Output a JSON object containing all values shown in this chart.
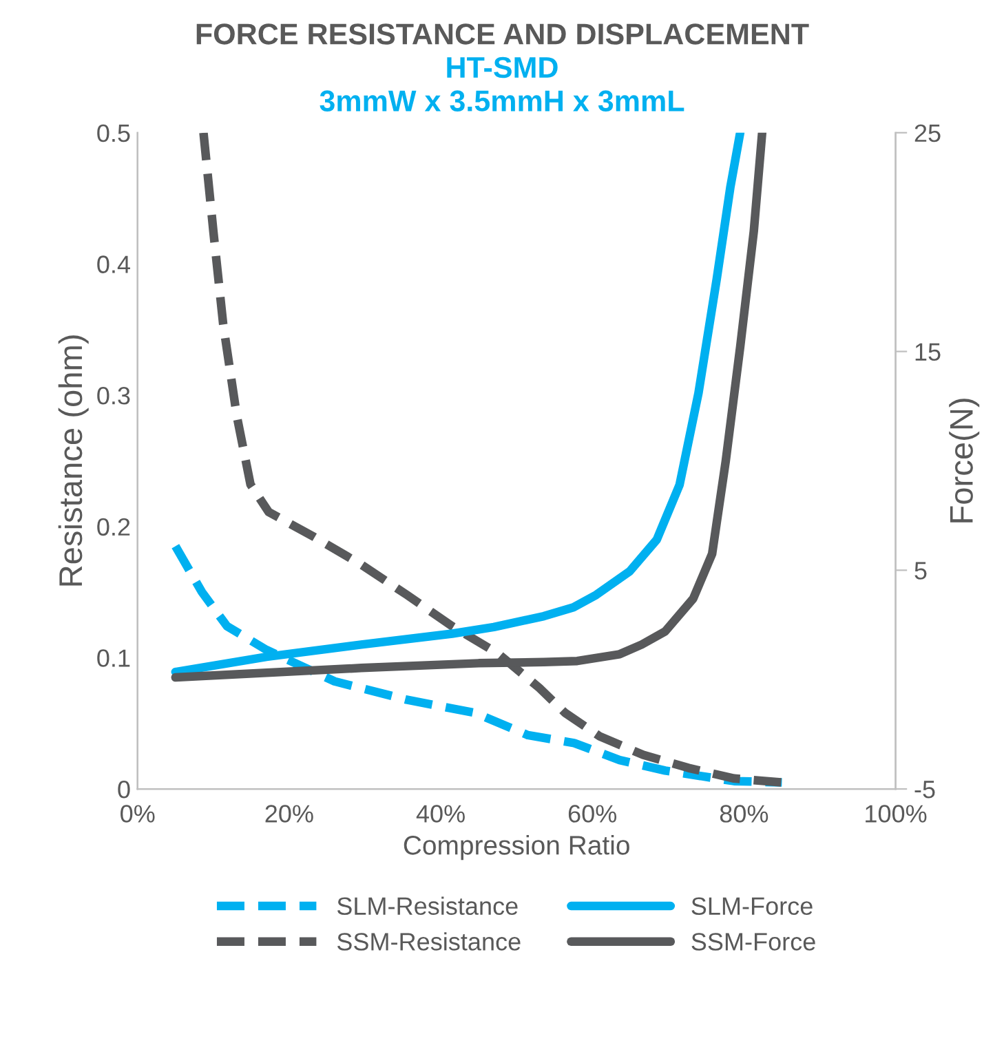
{
  "chart_data": {
    "type": "line",
    "title": "FORCE RESISTANCE AND DISPLACEMENT",
    "subtitle": "HT-SMD\n3mmW x 3.5mmH x 3mmL",
    "xlabel": "Compression Ratio",
    "ylabel": "Resistance (ohm)",
    "y2label": "Force(N)",
    "xlim": [
      0,
      100
    ],
    "xticks": [
      {
        "value": 0,
        "label": "0%"
      },
      {
        "value": 20,
        "label": "20%"
      },
      {
        "value": 40,
        "label": "40%"
      },
      {
        "value": 60,
        "label": "60%"
      },
      {
        "value": 80,
        "label": "80%"
      },
      {
        "value": 100,
        "label": "100%"
      }
    ],
    "ylim": [
      0,
      0.5
    ],
    "yticks": [
      0,
      0.1,
      0.2,
      0.3,
      0.4,
      0.5
    ],
    "y2lim": [
      -5,
      25
    ],
    "y2ticks": [
      -5,
      5,
      15,
      25
    ],
    "grid": false,
    "legend": "bottom",
    "marker": "none",
    "series": [
      {
        "name": "SLM-Resistance",
        "color": "#00b0f0",
        "line_style": "dashed",
        "x": [
          5,
          8.5,
          11.8,
          17,
          26,
          35.5,
          44.5,
          51.5,
          57.6,
          63.6,
          69.6,
          78.7,
          85
        ],
        "values": [
          0.185,
          0.15,
          0.124,
          0.106,
          0.082,
          0.068,
          0.058,
          0.041,
          0.035,
          0.022,
          0.014,
          0.006,
          0.005
        ]
      },
      {
        "name": "SSM-Resistance",
        "color": "#58595b",
        "line_style": "dashed",
        "x": [
          8.7,
          10,
          11.3,
          13.1,
          14.9,
          17.3,
          23.3,
          29.5,
          35.5,
          41.5,
          47.6,
          53,
          56.4,
          61,
          66.7,
          72.7,
          78.7,
          85
        ],
        "values": [
          0.5,
          0.425,
          0.354,
          0.284,
          0.232,
          0.211,
          0.192,
          0.171,
          0.148,
          0.124,
          0.103,
          0.077,
          0.058,
          0.04,
          0.026,
          0.016,
          0.008,
          0.005
        ]
      },
      {
        "name": "SLM-Force",
        "color": "#00b0f0",
        "line_style": "solid",
        "axis": "y2",
        "x": [
          5,
          17,
          29.5,
          41.5,
          47,
          53.6,
          57.5,
          60.5,
          64.9,
          68.5,
          71.5,
          74,
          76.4,
          78.2,
          79.5
        ],
        "values": [
          0.35,
          1.04,
          1.6,
          2.1,
          2.4,
          2.9,
          3.3,
          3.87,
          4.94,
          6.4,
          8.9,
          13.1,
          18.3,
          22.5,
          25
        ]
      },
      {
        "name": "SSM-Force",
        "color": "#58595b",
        "line_style": "solid",
        "axis": "y2",
        "x": [
          5,
          29.5,
          45,
          53.6,
          58,
          63.6,
          66.5,
          69.6,
          73.3,
          75.8,
          77.6,
          79.5,
          81.3,
          82.4
        ],
        "values": [
          0.1,
          0.53,
          0.75,
          0.8,
          0.85,
          1.16,
          1.6,
          2.2,
          3.7,
          5.75,
          10,
          15.2,
          20.5,
          25
        ]
      }
    ]
  }
}
